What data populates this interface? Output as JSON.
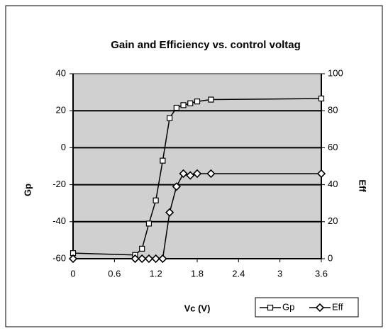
{
  "chart_data": {
    "type": "line",
    "title": "Gain and Efficiency vs. control voltag",
    "x_label": "Vc (V)",
    "y_label": "Gp",
    "y2_label": "Eff",
    "x": [
      0,
      0.9,
      1.0,
      1.1,
      1.2,
      1.3,
      1.4,
      1.5,
      1.6,
      1.7,
      1.8,
      2.0,
      3.6
    ],
    "series": [
      {
        "name": "Gp",
        "color": "#000000",
        "marker": "square",
        "values": [
          -57,
          -58,
          -54.6,
          -41,
          -28.5,
          -7,
          16,
          21.6,
          23,
          24,
          25,
          26,
          26.6
        ]
      },
      {
        "name": "Eff",
        "color": "#000000",
        "marker": "diamond",
        "axis": "y2",
        "values": [
          0,
          0,
          0,
          0,
          0,
          0,
          25,
          39,
          46,
          45,
          46,
          46,
          46
        ]
      }
    ],
    "xlim": [
      0,
      3.6
    ],
    "xticks": [
      0,
      0.6,
      1.2,
      1.8,
      2.4,
      3,
      3.6
    ],
    "ylim": [
      -60,
      40
    ],
    "yticks": [
      -60,
      -40,
      -20,
      0,
      20,
      40
    ],
    "y2lim": [
      0,
      100
    ],
    "y2ticks": [
      0,
      20,
      40,
      60,
      80,
      100
    ],
    "grid": true,
    "legend": "bottom-right"
  }
}
